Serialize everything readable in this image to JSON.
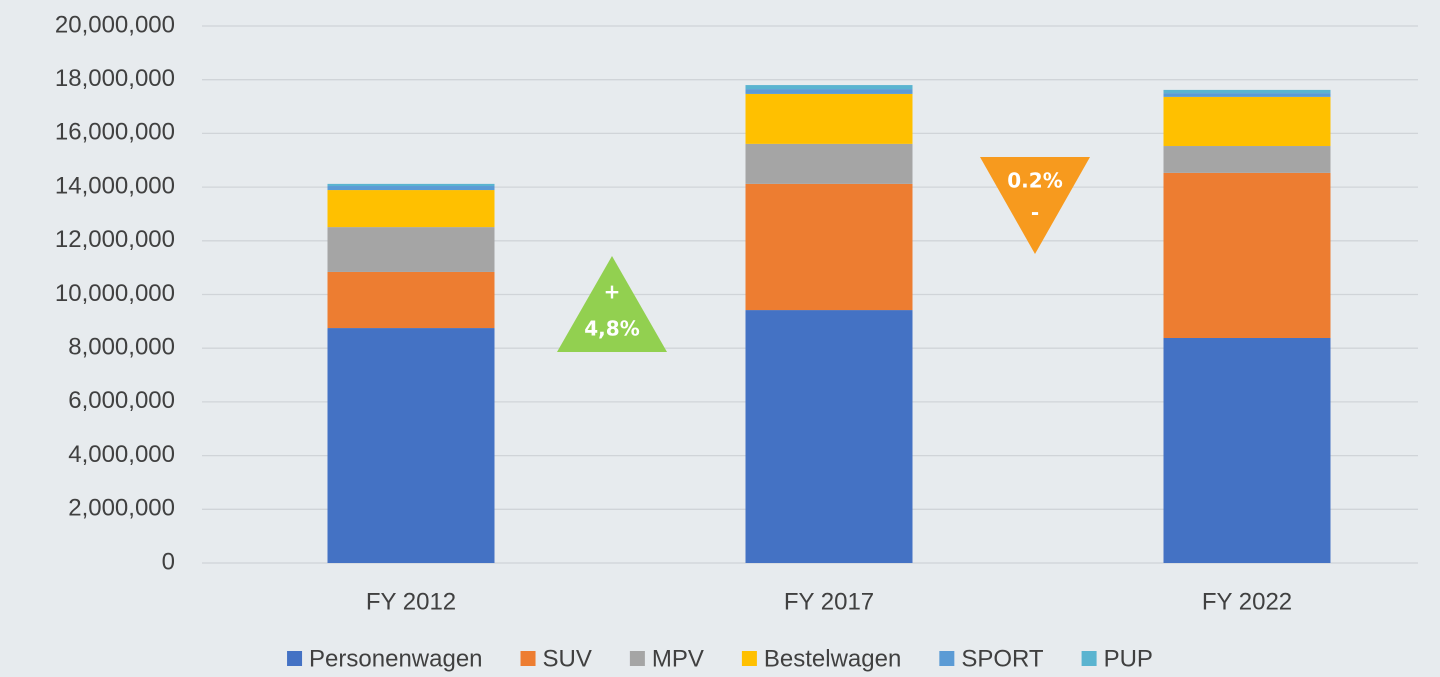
{
  "chart_data": {
    "type": "stacked_bar",
    "categories": [
      "FY 2012",
      "FY 2017",
      "FY 2022"
    ],
    "series": [
      {
        "name": "Personenwagen",
        "color": "#4472c4",
        "values": [
          8750000,
          9420000,
          8380000
        ]
      },
      {
        "name": "SUV",
        "color": "#ed7d31",
        "values": [
          2090000,
          4700000,
          6150000
        ]
      },
      {
        "name": "MPV",
        "color": "#a5a5a5",
        "values": [
          1670000,
          1490000,
          1000000
        ]
      },
      {
        "name": "Bestelwagen",
        "color": "#ffc000",
        "values": [
          1380000,
          1860000,
          1830000
        ]
      },
      {
        "name": "SPORT",
        "color": "#5b9bd5",
        "values": [
          150000,
          180000,
          140000
        ]
      },
      {
        "name": "PUP",
        "color": "#5ab4d0",
        "values": [
          80000,
          150000,
          120000
        ]
      }
    ],
    "ylim": [
      0,
      20000000
    ],
    "yticks": [
      0,
      {
        "value": 2000000,
        "label": "2,000,000"
      },
      {
        "value": 4000000,
        "label": "4,000,000"
      },
      {
        "value": 6000000,
        "label": "6,000,000"
      },
      {
        "value": 8000000,
        "label": "8,000,000"
      },
      {
        "value": 10000000,
        "label": "10,000,000"
      },
      {
        "value": 12000000,
        "label": "12,000,000"
      },
      {
        "value": 14000000,
        "label": "14,000,000"
      },
      {
        "value": 16000000,
        "label": "16,000,000"
      },
      {
        "value": 18000000,
        "label": "18,000,000"
      },
      {
        "value": 20000000,
        "label": "20,000,000"
      }
    ],
    "grid": true,
    "legend": "bottom",
    "annotations": [
      {
        "shape": "up",
        "color": "#92d050",
        "lines": [
          "+",
          "4,8%"
        ]
      },
      {
        "shape": "down",
        "color": "#f79a1e",
        "lines": [
          "0.2%",
          "-"
        ]
      }
    ]
  }
}
